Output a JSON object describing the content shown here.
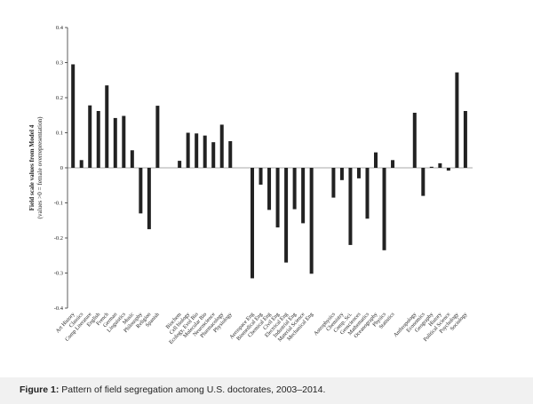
{
  "caption": {
    "label": "Figure 1:",
    "text": "Pattern of field segregation among U.S. doctorates, 2003–2014."
  },
  "chart_data": {
    "type": "bar",
    "ylabel": "Field scale values from Model 4",
    "ylabel_sub": "(values >0 = female overrepresentation)",
    "xlabel": "",
    "ylim": [
      -0.4,
      0.4
    ],
    "yticks": [
      0.4,
      0.3,
      0.2,
      0.1,
      0,
      -0.1,
      -0.2,
      -0.3,
      -0.4
    ],
    "grid": false,
    "bar_color": "#222222",
    "categories": [
      "Art History",
      "Classics",
      "Comp Literature",
      "English",
      "French",
      "German",
      "Linguistics",
      "Music",
      "Philosophy",
      "Religion",
      "Spanish",
      "Biochem",
      "Cell biology",
      "Ecology, Evol Bio",
      "Molecular Bio",
      "Neuroscience",
      "Pharmacology",
      "Physiology",
      "Aerospace Eng",
      "Biomedical Eng",
      "Chemical Eng",
      "Civil Eng",
      "Electrical Eng",
      "Industrial Eng",
      "Material Science",
      "Mechanical Eng",
      "Astrophysics",
      "Chemistry",
      "Comp. Sci.",
      "Geosciences",
      "Mathematics",
      "Oceanography",
      "Physics",
      "Statistics",
      "Anthropology",
      "Economics",
      "Geography",
      "History",
      "Political Science",
      "Psychology",
      "Sociology"
    ],
    "values": [
      0.295,
      0.022,
      0.178,
      0.162,
      0.235,
      0.142,
      0.148,
      0.05,
      -0.13,
      -0.175,
      0.177,
      0.02,
      0.1,
      0.098,
      0.092,
      0.073,
      0.123,
      0.076,
      -0.315,
      -0.048,
      -0.12,
      -0.17,
      -0.27,
      -0.118,
      -0.158,
      -0.302,
      -0.085,
      -0.035,
      -0.22,
      -0.03,
      -0.145,
      0.044,
      -0.235,
      0.022,
      0.157,
      -0.08,
      0.003,
      0.013,
      -0.008,
      0.272,
      0.162
    ]
  }
}
